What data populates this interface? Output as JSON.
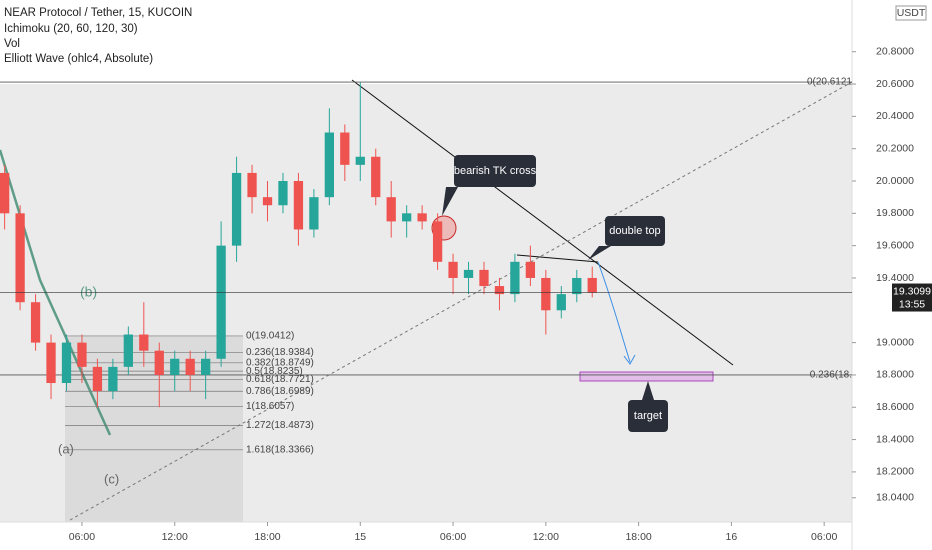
{
  "chart_data": {
    "type": "candlestick",
    "title": "NEAR Protocol / Tether, 15, KUCOIN",
    "indicators": [
      "Ichimoku (20, 60, 120, 30)",
      "Vol",
      "Elliott Wave (ohlc4, Absolute)"
    ],
    "currency": "USDT",
    "up_color": "#26a69a",
    "down_color": "#ef5350",
    "x": [
      1,
      2,
      3,
      4,
      5,
      6,
      7,
      8,
      9,
      10,
      11,
      12,
      13,
      14,
      15,
      16,
      17,
      18,
      19,
      20,
      21,
      22,
      23,
      24,
      25,
      26,
      27,
      28,
      29,
      30,
      31,
      32,
      33,
      34,
      35,
      36,
      37,
      38,
      39
    ],
    "open": [
      20.05,
      19.8,
      19.25,
      19.0,
      18.75,
      19.0,
      18.85,
      18.7,
      18.85,
      19.05,
      18.95,
      18.8,
      18.9,
      18.8,
      18.9,
      19.6,
      20.05,
      19.9,
      19.85,
      20.0,
      19.7,
      19.9,
      20.3,
      20.1,
      20.15,
      19.9,
      19.75,
      19.8,
      19.75,
      19.5,
      19.4,
      19.45,
      19.35,
      19.3,
      19.5,
      19.4,
      19.2,
      19.3,
      19.4
    ],
    "high": [
      20.1,
      19.85,
      19.3,
      19.05,
      19.05,
      19.05,
      18.9,
      18.9,
      19.1,
      19.25,
      19.0,
      18.95,
      18.95,
      18.95,
      19.75,
      20.15,
      20.1,
      20.0,
      20.05,
      20.05,
      19.95,
      20.45,
      20.35,
      20.61,
      20.2,
      20.0,
      19.85,
      19.85,
      19.8,
      19.55,
      19.5,
      19.5,
      19.4,
      19.55,
      19.6,
      19.45,
      19.35,
      19.45,
      19.47
    ],
    "low": [
      19.7,
      19.2,
      18.95,
      18.65,
      18.7,
      18.75,
      18.6,
      18.65,
      18.8,
      18.85,
      18.6,
      18.7,
      18.7,
      18.65,
      18.85,
      19.5,
      19.8,
      19.75,
      19.8,
      19.6,
      19.65,
      19.85,
      20.0,
      20.0,
      19.85,
      19.65,
      19.65,
      19.7,
      19.45,
      19.3,
      19.3,
      19.3,
      19.2,
      19.25,
      19.35,
      19.05,
      19.15,
      19.25,
      19.28
    ],
    "close": [
      19.8,
      19.25,
      19.0,
      18.75,
      19.0,
      18.85,
      18.7,
      18.85,
      19.05,
      18.95,
      18.8,
      18.9,
      18.8,
      18.9,
      19.6,
      20.05,
      19.9,
      19.85,
      20.0,
      19.7,
      19.9,
      20.3,
      20.1,
      20.15,
      19.9,
      19.75,
      19.8,
      19.75,
      19.5,
      19.4,
      19.45,
      19.35,
      19.3,
      19.5,
      19.4,
      19.2,
      19.3,
      19.4,
      19.31
    ],
    "xlim": [
      0.7,
      55.8
    ],
    "xticks": [
      {
        "value": 6,
        "label": "06:00"
      },
      {
        "value": 12,
        "label": "12:00"
      },
      {
        "value": 18,
        "label": "18:00"
      },
      {
        "value": 24,
        "label": "15"
      },
      {
        "value": 30,
        "label": "06:00"
      },
      {
        "value": 36,
        "label": "12:00"
      },
      {
        "value": 42,
        "label": "18:00"
      },
      {
        "value": 48,
        "label": "16"
      },
      {
        "value": 54,
        "label": "06:00"
      }
    ],
    "ylim": [
      17.89,
      21.12
    ],
    "yticks": [
      {
        "value": 20.8,
        "label": "20.8000"
      },
      {
        "value": 20.6,
        "label": "20.6000"
      },
      {
        "value": 20.4,
        "label": "20.4000"
      },
      {
        "value": 20.2,
        "label": "20.2000"
      },
      {
        "value": 20.0,
        "label": "20.0000"
      },
      {
        "value": 19.8,
        "label": "19.8000"
      },
      {
        "value": 19.6,
        "label": "19.6000"
      },
      {
        "value": 19.4,
        "label": "19.4000"
      },
      {
        "value": 19.0,
        "label": "19.0000"
      },
      {
        "value": 18.8,
        "label": "18.8000"
      },
      {
        "value": 18.6,
        "label": "18.6000"
      },
      {
        "value": 18.4,
        "label": "18.4000"
      },
      {
        "value": 18.2,
        "label": "18.2000"
      },
      {
        "value": 18.04,
        "label": "18.0400"
      }
    ],
    "fib_levels": [
      {
        "value": 19.0412,
        "label": "0(19.0412)"
      },
      {
        "value": 18.9384,
        "label": "0.236(18.9384)"
      },
      {
        "value": 18.8749,
        "label": "0.382(18.8749)"
      },
      {
        "value": 18.8235,
        "label": "0.5(18.8235)"
      },
      {
        "value": 18.7721,
        "label": "0.618(18.7721)"
      },
      {
        "value": 18.6989,
        "label": "0.786(18.6989)"
      },
      {
        "value": 18.6057,
        "label": "1(18.6057)"
      },
      {
        "value": 18.4873,
        "label": "1.272(18.4873)"
      },
      {
        "value": 18.3366,
        "label": "1.618(18.3366)"
      }
    ],
    "levels": [
      {
        "value": 20.6121,
        "label": "0(20.6121"
      },
      {
        "value": 18.8,
        "label": "0.236(18."
      }
    ],
    "callouts": [
      "bearish TK cross",
      "double top",
      "target"
    ],
    "wave_labels": [
      "(b)",
      "(a)",
      "(c)"
    ],
    "last_price": 19.3099,
    "countdown": "13:55"
  }
}
